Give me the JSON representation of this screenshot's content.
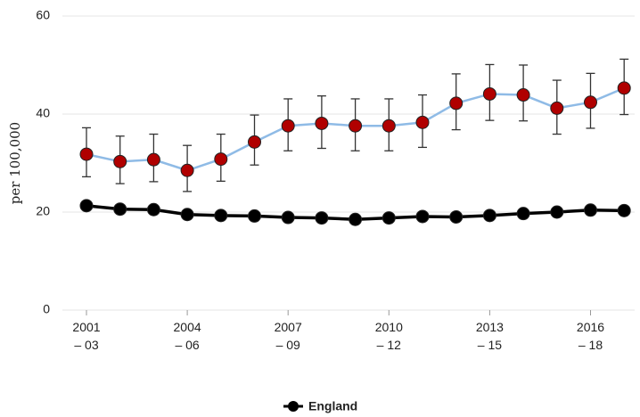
{
  "chart_data": {
    "type": "line",
    "y_label": "per 100,000",
    "categories": [
      "2001\n– 03",
      null,
      null,
      "2004\n– 06",
      null,
      null,
      "2007\n– 09",
      null,
      null,
      "2010\n– 12",
      null,
      null,
      "2013\n– 15",
      null,
      null,
      "2016\n– 18",
      null
    ],
    "series": [
      {
        "line_color": "#8fbbe6",
        "color": "#b00000",
        "values": [
          31.8,
          30.3,
          30.7,
          28.5,
          30.8,
          34.3,
          37.6,
          38.1,
          37.6,
          37.6,
          38.3,
          42.2,
          44.1,
          43.9,
          41.2,
          42.4,
          45.3
        ],
        "ci_low": [
          27.2,
          25.8,
          26.2,
          24.2,
          26.3,
          29.6,
          32.5,
          33.0,
          32.5,
          32.5,
          33.2,
          36.8,
          38.7,
          38.6,
          35.9,
          37.1,
          39.9
        ],
        "ci_high": [
          37.2,
          35.5,
          35.9,
          33.6,
          35.9,
          39.8,
          43.1,
          43.7,
          43.1,
          43.1,
          43.9,
          48.2,
          50.1,
          50.0,
          46.9,
          48.3,
          51.2
        ]
      },
      {
        "name": "England",
        "line_color": "#000000",
        "color": "#000000",
        "values": [
          21.3,
          20.6,
          20.5,
          19.5,
          19.3,
          19.2,
          18.9,
          18.8,
          18.5,
          18.8,
          19.1,
          19.0,
          19.3,
          19.7,
          20.0,
          20.4,
          20.3
        ]
      }
    ],
    "ylim": [
      0,
      60
    ],
    "yticks": [
      0,
      20,
      40,
      60
    ],
    "grid": true
  }
}
